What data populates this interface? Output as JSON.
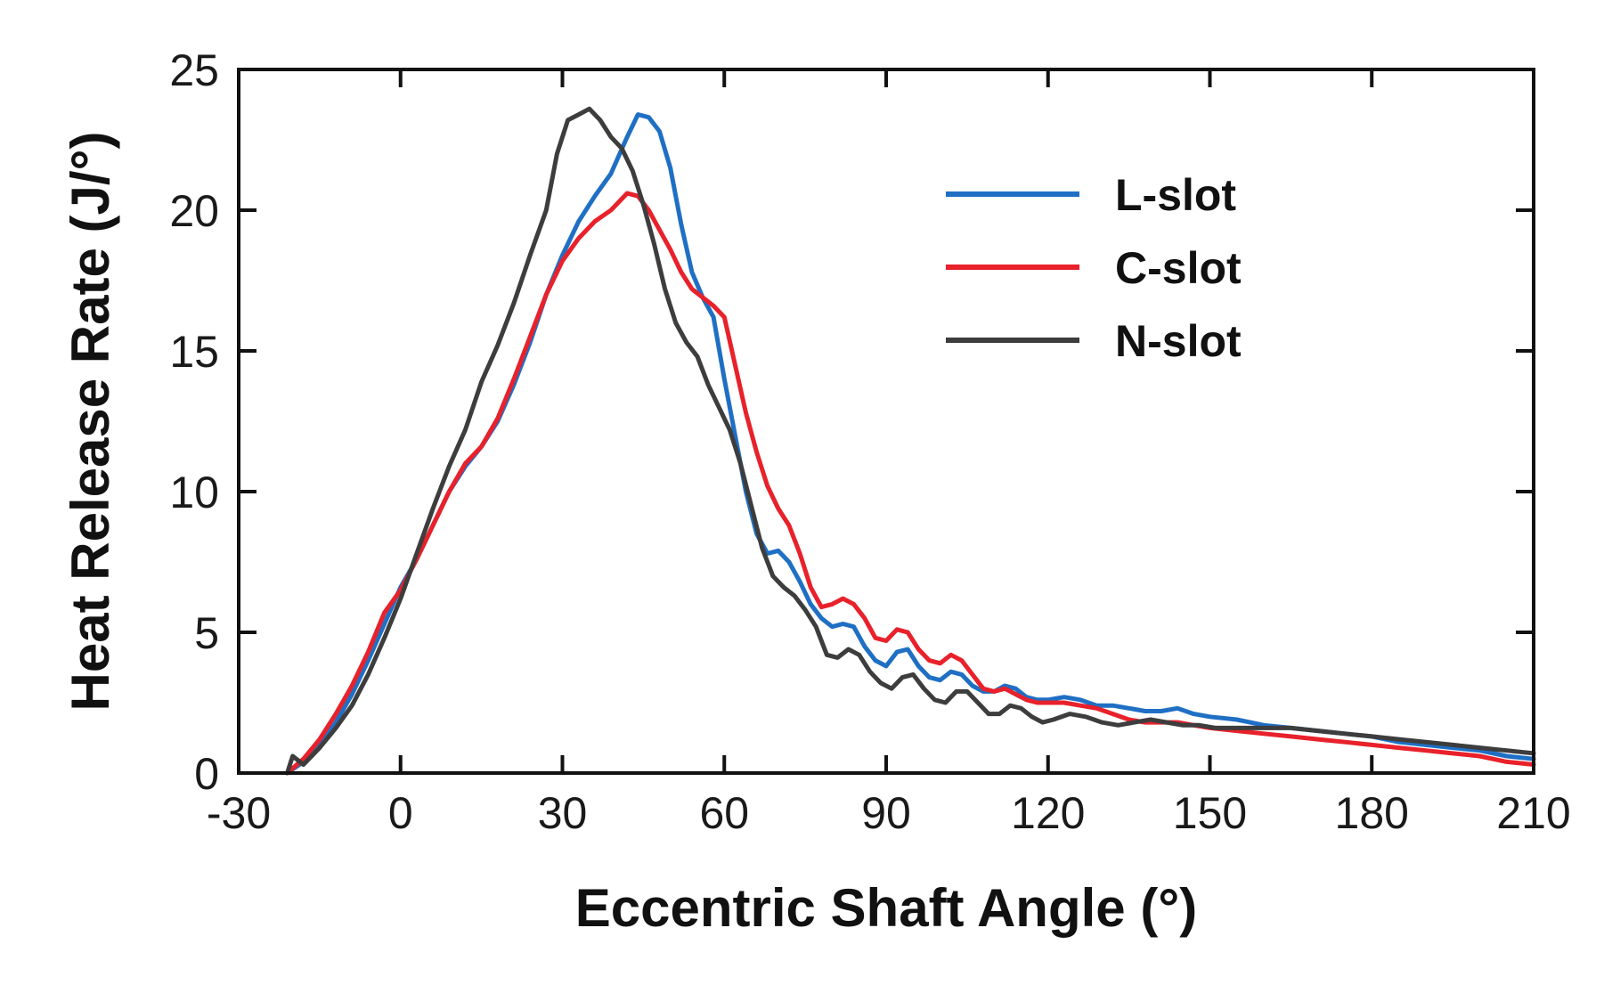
{
  "chart_data": {
    "type": "line",
    "title": "",
    "xlabel": "Eccentric Shaft Angle (°)",
    "ylabel": "Heat Release Rate (J/°)",
    "xlim": [
      -30,
      210
    ],
    "ylim": [
      0,
      25
    ],
    "xticks": [
      -30,
      0,
      30,
      60,
      90,
      120,
      150,
      180,
      210
    ],
    "yticks": [
      0,
      5,
      10,
      15,
      20,
      25
    ],
    "xtick_labels": [
      "-30",
      "0",
      "30",
      "60",
      "90",
      "120",
      "150",
      "180",
      "210"
    ],
    "ytick_labels": [
      "0",
      "5",
      "10",
      "15",
      "20",
      "25"
    ],
    "grid": false,
    "legend_position": "top-right",
    "series": [
      {
        "name": "L-slot",
        "color": "#1f6fc4",
        "x": [
          -21,
          -18,
          -15,
          -12,
          -9,
          -6,
          -3,
          0,
          3,
          6,
          9,
          12,
          15,
          18,
          21,
          24,
          27,
          30,
          33,
          36,
          39,
          42,
          44,
          46,
          48,
          50,
          52,
          54,
          56,
          58,
          60,
          62,
          64,
          66,
          68,
          70,
          72,
          74,
          76,
          78,
          80,
          82,
          84,
          86,
          88,
          90,
          92,
          94,
          96,
          98,
          100,
          102,
          104,
          106,
          108,
          110,
          112,
          114,
          116,
          118,
          120,
          123,
          126,
          129,
          132,
          135,
          138,
          141,
          144,
          147,
          150,
          155,
          160,
          165,
          170,
          175,
          180,
          185,
          190,
          195,
          200,
          205,
          210
        ],
        "y": [
          0,
          0.4,
          1.0,
          1.8,
          2.8,
          4.0,
          5.3,
          6.6,
          7.6,
          8.8,
          10.0,
          10.9,
          11.6,
          12.5,
          13.8,
          15.3,
          17.0,
          18.4,
          19.6,
          20.5,
          21.3,
          22.6,
          23.4,
          23.3,
          22.8,
          21.5,
          19.5,
          17.8,
          16.9,
          16.2,
          14.0,
          12.0,
          10.0,
          8.5,
          7.8,
          7.9,
          7.5,
          6.8,
          6.0,
          5.5,
          5.2,
          5.3,
          5.2,
          4.5,
          4.0,
          3.8,
          4.3,
          4.4,
          3.8,
          3.4,
          3.3,
          3.6,
          3.5,
          3.1,
          2.9,
          2.9,
          3.1,
          3.0,
          2.7,
          2.6,
          2.6,
          2.7,
          2.6,
          2.4,
          2.4,
          2.3,
          2.2,
          2.2,
          2.3,
          2.1,
          2.0,
          1.9,
          1.7,
          1.6,
          1.5,
          1.4,
          1.3,
          1.1,
          1.0,
          0.9,
          0.8,
          0.6,
          0.5
        ]
      },
      {
        "name": "C-slot",
        "color": "#e8212b",
        "x": [
          -21,
          -18,
          -15,
          -12,
          -9,
          -6,
          -3,
          0,
          3,
          6,
          9,
          12,
          15,
          18,
          21,
          24,
          27,
          30,
          33,
          36,
          39,
          42,
          44,
          46,
          48,
          50,
          52,
          54,
          56,
          58,
          60,
          62,
          64,
          66,
          68,
          70,
          72,
          74,
          76,
          78,
          80,
          82,
          84,
          86,
          88,
          90,
          92,
          94,
          96,
          98,
          100,
          102,
          104,
          106,
          108,
          110,
          112,
          114,
          116,
          118,
          120,
          123,
          126,
          129,
          132,
          135,
          138,
          141,
          144,
          147,
          150,
          155,
          160,
          165,
          170,
          175,
          180,
          185,
          190,
          195,
          200,
          205,
          210
        ],
        "y": [
          0,
          0.5,
          1.2,
          2.1,
          3.1,
          4.3,
          5.7,
          6.5,
          7.6,
          8.8,
          10.0,
          11.0,
          11.6,
          12.6,
          14.0,
          15.5,
          17.0,
          18.2,
          19.0,
          19.6,
          20.0,
          20.6,
          20.5,
          20.0,
          19.3,
          18.6,
          17.8,
          17.2,
          16.9,
          16.6,
          16.2,
          14.5,
          12.8,
          11.4,
          10.2,
          9.4,
          8.8,
          7.8,
          6.6,
          5.9,
          6.0,
          6.2,
          6.0,
          5.5,
          4.8,
          4.7,
          5.1,
          5.0,
          4.4,
          4.0,
          3.9,
          4.2,
          4.0,
          3.5,
          3.0,
          2.9,
          3.0,
          2.8,
          2.6,
          2.5,
          2.5,
          2.5,
          2.4,
          2.3,
          2.1,
          1.9,
          1.8,
          1.8,
          1.8,
          1.7,
          1.6,
          1.5,
          1.4,
          1.3,
          1.2,
          1.1,
          1.0,
          0.9,
          0.8,
          0.7,
          0.6,
          0.4,
          0.3
        ]
      },
      {
        "name": "N-slot",
        "color": "#3d3d3d",
        "x": [
          -21,
          -20,
          -18,
          -15,
          -12,
          -9,
          -6,
          -3,
          0,
          3,
          6,
          9,
          12,
          15,
          18,
          21,
          24,
          27,
          29,
          31,
          33,
          35,
          37,
          39,
          41,
          43,
          45,
          47,
          49,
          51,
          53,
          55,
          57,
          59,
          61,
          63,
          65,
          67,
          69,
          71,
          73,
          75,
          77,
          79,
          81,
          83,
          85,
          87,
          89,
          91,
          93,
          95,
          97,
          99,
          101,
          103,
          105,
          107,
          109,
          111,
          113,
          115,
          117,
          119,
          121,
          124,
          127,
          130,
          133,
          136,
          139,
          142,
          145,
          148,
          151,
          155,
          160,
          165,
          170,
          175,
          180,
          185,
          190,
          195,
          200,
          205,
          210
        ],
        "y": [
          0,
          0.6,
          0.3,
          0.9,
          1.6,
          2.4,
          3.5,
          4.8,
          6.2,
          7.8,
          9.4,
          10.9,
          12.2,
          13.9,
          15.2,
          16.7,
          18.4,
          20.0,
          22.0,
          23.2,
          23.4,
          23.6,
          23.2,
          22.6,
          22.2,
          21.4,
          20.2,
          18.8,
          17.2,
          16.0,
          15.3,
          14.8,
          13.8,
          13.0,
          12.2,
          11.0,
          9.5,
          8.0,
          7.0,
          6.6,
          6.3,
          5.8,
          5.2,
          4.2,
          4.1,
          4.4,
          4.2,
          3.6,
          3.2,
          3.0,
          3.4,
          3.5,
          3.0,
          2.6,
          2.5,
          2.9,
          2.9,
          2.5,
          2.1,
          2.1,
          2.4,
          2.3,
          2.0,
          1.8,
          1.9,
          2.1,
          2.0,
          1.8,
          1.7,
          1.8,
          1.9,
          1.8,
          1.7,
          1.7,
          1.6,
          1.6,
          1.6,
          1.6,
          1.5,
          1.4,
          1.3,
          1.2,
          1.1,
          1.0,
          0.9,
          0.8,
          0.7
        ]
      }
    ]
  }
}
